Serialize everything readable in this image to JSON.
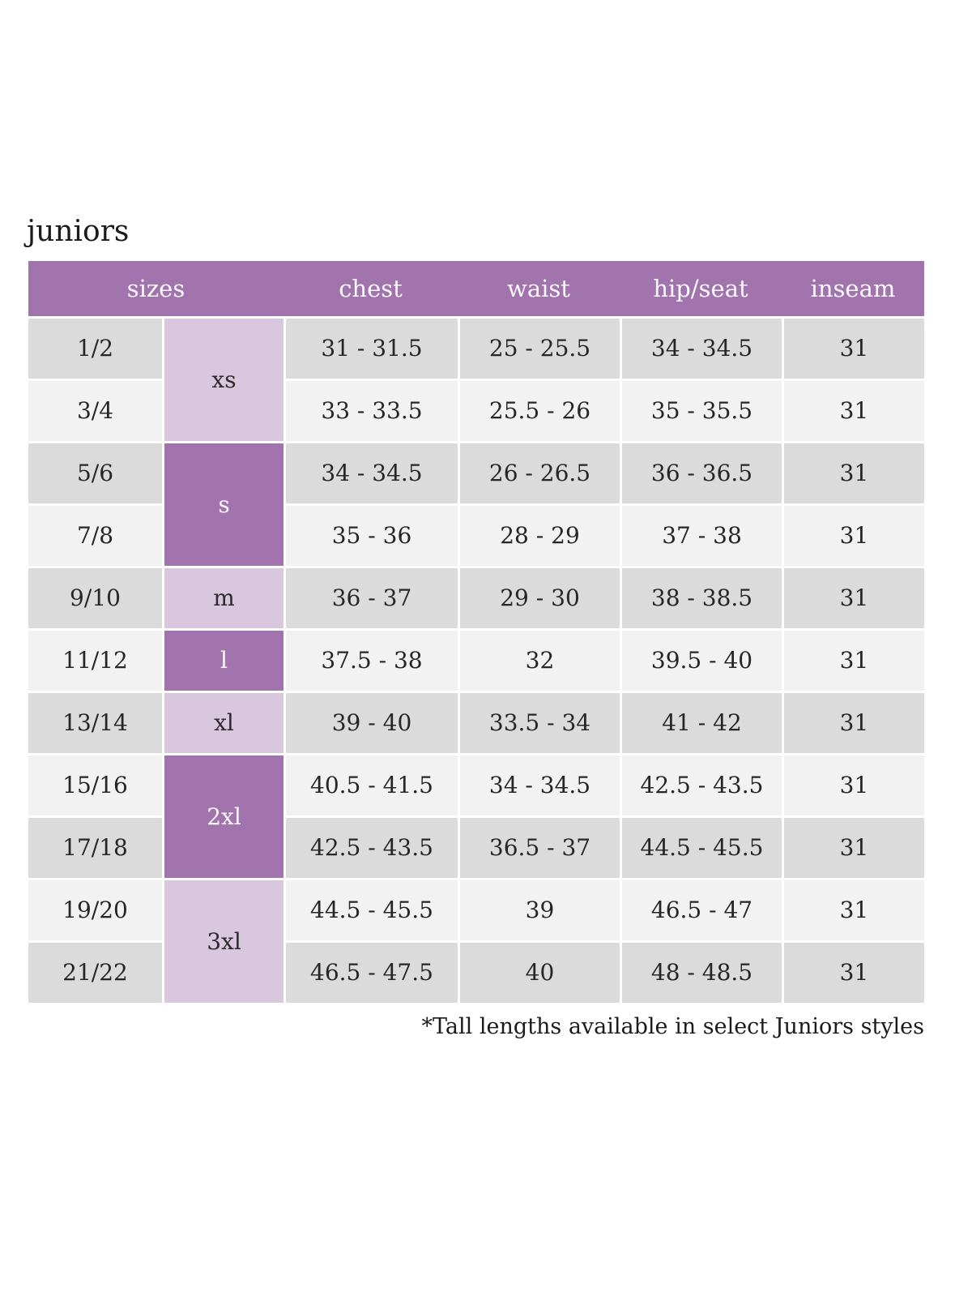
{
  "page": {
    "title": "juniors",
    "footnote": "*Tall lengths available in select Juniors styles"
  },
  "table": {
    "headers": {
      "sizes": "sizes",
      "chest": "chest",
      "waist": "waist",
      "hip_seat": "hip/seat",
      "inseam": "inseam"
    },
    "letter_sizes": [
      {
        "label": "xs",
        "rows": 2,
        "tone": "light"
      },
      {
        "label": "s",
        "rows": 2,
        "tone": "dark"
      },
      {
        "label": "m",
        "rows": 1,
        "tone": "light"
      },
      {
        "label": "l",
        "rows": 1,
        "tone": "dark"
      },
      {
        "label": "xl",
        "rows": 1,
        "tone": "light"
      },
      {
        "label": "2xl",
        "rows": 2,
        "tone": "dark"
      },
      {
        "label": "3xl",
        "rows": 2,
        "tone": "light"
      }
    ],
    "rows": [
      {
        "size": "1/2",
        "chest": "31 - 31.5",
        "waist": "25 - 25.5",
        "hip_seat": "34 - 34.5",
        "inseam": "31"
      },
      {
        "size": "3/4",
        "chest": "33 - 33.5",
        "waist": "25.5 - 26",
        "hip_seat": "35 - 35.5",
        "inseam": "31"
      },
      {
        "size": "5/6",
        "chest": "34 - 34.5",
        "waist": "26 - 26.5",
        "hip_seat": "36 - 36.5",
        "inseam": "31"
      },
      {
        "size": "7/8",
        "chest": "35 - 36",
        "waist": "28 - 29",
        "hip_seat": "37 - 38",
        "inseam": "31"
      },
      {
        "size": "9/10",
        "chest": "36 - 37",
        "waist": "29 - 30",
        "hip_seat": "38 - 38.5",
        "inseam": "31"
      },
      {
        "size": "11/12",
        "chest": "37.5 - 38",
        "waist": "32",
        "hip_seat": "39.5 - 40",
        "inseam": "31"
      },
      {
        "size": "13/14",
        "chest": "39 - 40",
        "waist": "33.5 - 34",
        "hip_seat": "41 - 42",
        "inseam": "31"
      },
      {
        "size": "15/16",
        "chest": "40.5 - 41.5",
        "waist": "34 - 34.5",
        "hip_seat": "42.5 - 43.5",
        "inseam": "31"
      },
      {
        "size": "17/18",
        "chest": "42.5 - 43.5",
        "waist": "36.5 - 37",
        "hip_seat": "44.5 - 45.5",
        "inseam": "31"
      },
      {
        "size": "19/20",
        "chest": "44.5 - 45.5",
        "waist": "39",
        "hip_seat": "46.5 - 47",
        "inseam": "31"
      },
      {
        "size": "21/22",
        "chest": "46.5 - 47.5",
        "waist": "40",
        "hip_seat": "48 - 48.5",
        "inseam": "31"
      }
    ],
    "colors": {
      "header_bg": "#a274ae",
      "dark_purple": "#a274ae",
      "light_purple": "#d9c7e0",
      "row_gray": "#dcdbdc",
      "row_light": "#f3f2f3",
      "header_text": "#fbf8fc",
      "body_text": "#262626"
    }
  }
}
